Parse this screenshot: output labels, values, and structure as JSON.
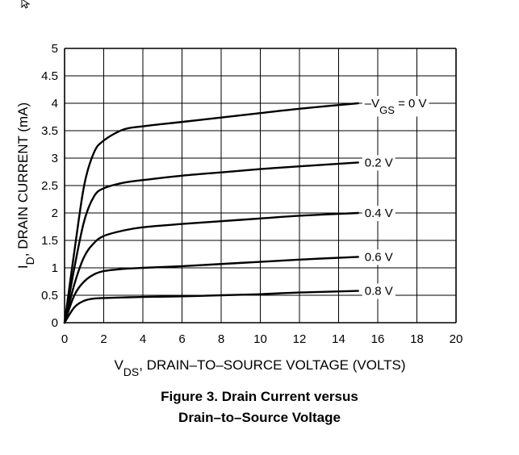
{
  "chart_data": {
    "type": "line",
    "xlabel": {
      "prefix": "V",
      "sub": "DS",
      "rest": ", DRAIN–TO–SOURCE VOLTAGE (VOLTS)"
    },
    "ylabel": {
      "prefix": "I",
      "sub": "D",
      "rest": ", DRAIN CURRENT (mA)"
    },
    "xlim": [
      0,
      20
    ],
    "ylim": [
      0,
      5
    ],
    "x_ticks": [
      "0",
      "2",
      "4",
      "6",
      "8",
      "10",
      "12",
      "14",
      "16",
      "18",
      "20"
    ],
    "y_ticks": [
      "0",
      "0.5",
      "1",
      "1.5",
      "2",
      "2.5",
      "3",
      "3.5",
      "4",
      "4.5",
      "5"
    ],
    "grid": true,
    "series": [
      {
        "name": "0 V",
        "label_pre": "–V",
        "label_sub": "GS",
        "label_post": " = 0 V",
        "x": [
          0,
          0.5,
          1,
          1.5,
          2,
          3,
          4,
          6,
          8,
          10,
          12,
          15
        ],
        "y": [
          0,
          1.3,
          2.5,
          3.1,
          3.32,
          3.52,
          3.58,
          3.66,
          3.74,
          3.82,
          3.9,
          4.0
        ]
      },
      {
        "name": "0.2 V",
        "label": "0.2 V",
        "x": [
          0,
          0.5,
          1,
          1.5,
          2,
          3,
          4,
          6,
          8,
          10,
          12,
          15
        ],
        "y": [
          0,
          1.0,
          1.85,
          2.3,
          2.45,
          2.55,
          2.6,
          2.68,
          2.74,
          2.8,
          2.85,
          2.92
        ]
      },
      {
        "name": "0.4 V",
        "label": "0.4 V",
        "x": [
          0,
          0.5,
          1,
          1.5,
          2,
          3,
          4,
          6,
          8,
          10,
          12,
          15
        ],
        "y": [
          0,
          0.7,
          1.2,
          1.45,
          1.58,
          1.68,
          1.74,
          1.8,
          1.85,
          1.9,
          1.95,
          2.0
        ]
      },
      {
        "name": "0.6 V",
        "label": "0.6 V",
        "x": [
          0,
          0.5,
          1,
          1.5,
          2,
          3,
          4,
          6,
          8,
          10,
          12,
          15
        ],
        "y": [
          0,
          0.5,
          0.75,
          0.88,
          0.94,
          0.98,
          1.0,
          1.03,
          1.07,
          1.11,
          1.15,
          1.2
        ]
      },
      {
        "name": "0.8 V",
        "label": "0.8 V",
        "x": [
          0,
          0.5,
          1,
          1.5,
          2,
          3,
          4,
          6,
          8,
          10,
          12,
          15
        ],
        "y": [
          0,
          0.28,
          0.4,
          0.44,
          0.45,
          0.46,
          0.47,
          0.48,
          0.5,
          0.52,
          0.55,
          0.58
        ]
      }
    ]
  },
  "caption": {
    "line1": "Figure 3. Drain Current versus",
    "line2": "Drain–to–Source Voltage"
  },
  "icons": {
    "cursor": "cursor-arrow-icon"
  }
}
